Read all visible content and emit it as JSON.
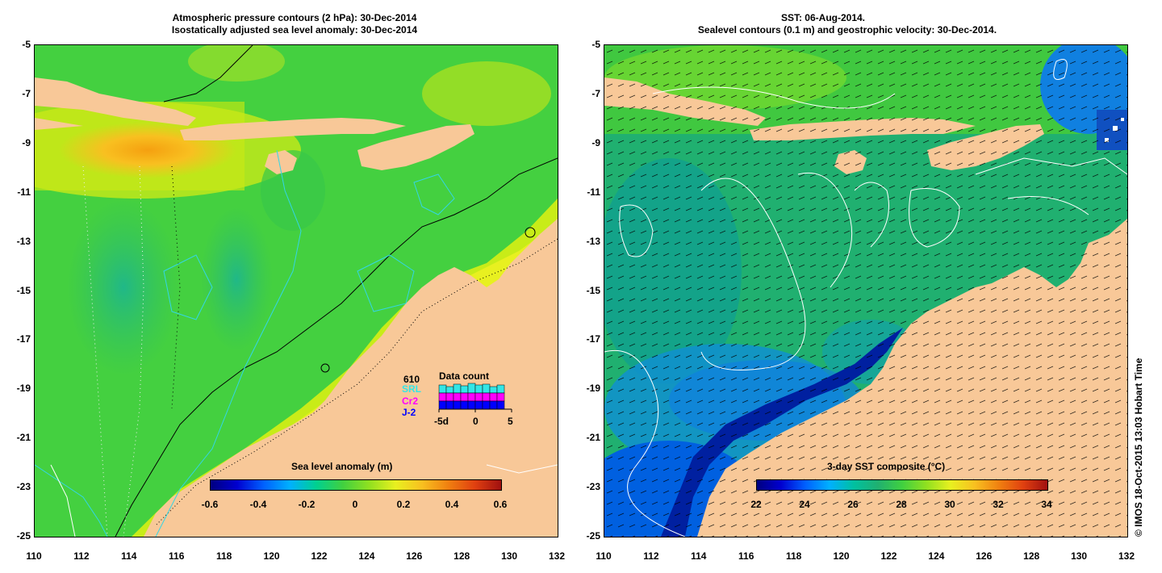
{
  "left": {
    "title_line1": "Atmospheric pressure contours (2 hPa): 30-Dec-2014",
    "title_line2": "Isostatically adjusted sea level anomaly: 30-Dec-2014",
    "colorbar_title": "Sea level anomaly (m)",
    "colorbar_ticks": [
      "-0.6",
      "-0.4",
      "-0.2",
      "0",
      "0.2",
      "0.4",
      "0.6"
    ],
    "colorbar_range": [
      -0.6,
      0.6
    ],
    "legend": {
      "count": "610",
      "title": "Data count",
      "satellites": [
        {
          "name": "SRL",
          "color": "#33e6e6"
        },
        {
          "name": "Cr2",
          "color": "#ff00ff"
        },
        {
          "name": "J-2",
          "color": "#0000ff"
        }
      ],
      "axis_ticks": [
        "-5d",
        "0",
        "5"
      ]
    }
  },
  "right": {
    "title_line1": "SST: 06-Aug-2014.",
    "title_line2": "Sealevel contours (0.1 m) and geostrophic velocity: 30-Dec-2014.",
    "colorbar_title": "3-day SST composite (°C)",
    "colorbar_ticks": [
      "22",
      "24",
      "26",
      "28",
      "30",
      "32",
      "34"
    ],
    "colorbar_range": [
      22,
      34
    ]
  },
  "axes": {
    "lat_ticks": [
      "-5",
      "-7",
      "-9",
      "-11",
      "-13",
      "-15",
      "-17",
      "-19",
      "-21",
      "-23",
      "-25"
    ],
    "lon_ticks": [
      "110",
      "112",
      "114",
      "116",
      "118",
      "120",
      "122",
      "124",
      "126",
      "128",
      "130",
      "132"
    ],
    "lat_range": [
      -25,
      -5
    ],
    "lon_range": [
      110,
      132
    ]
  },
  "copyright": "© IMOS 18-Oct-2015 13:03 Hobart Time",
  "colors": {
    "land": "#f8c898",
    "sla_ocean": "#40d040",
    "sst_ocean": "#20b070",
    "contour_cyan": "#33d6e6"
  }
}
